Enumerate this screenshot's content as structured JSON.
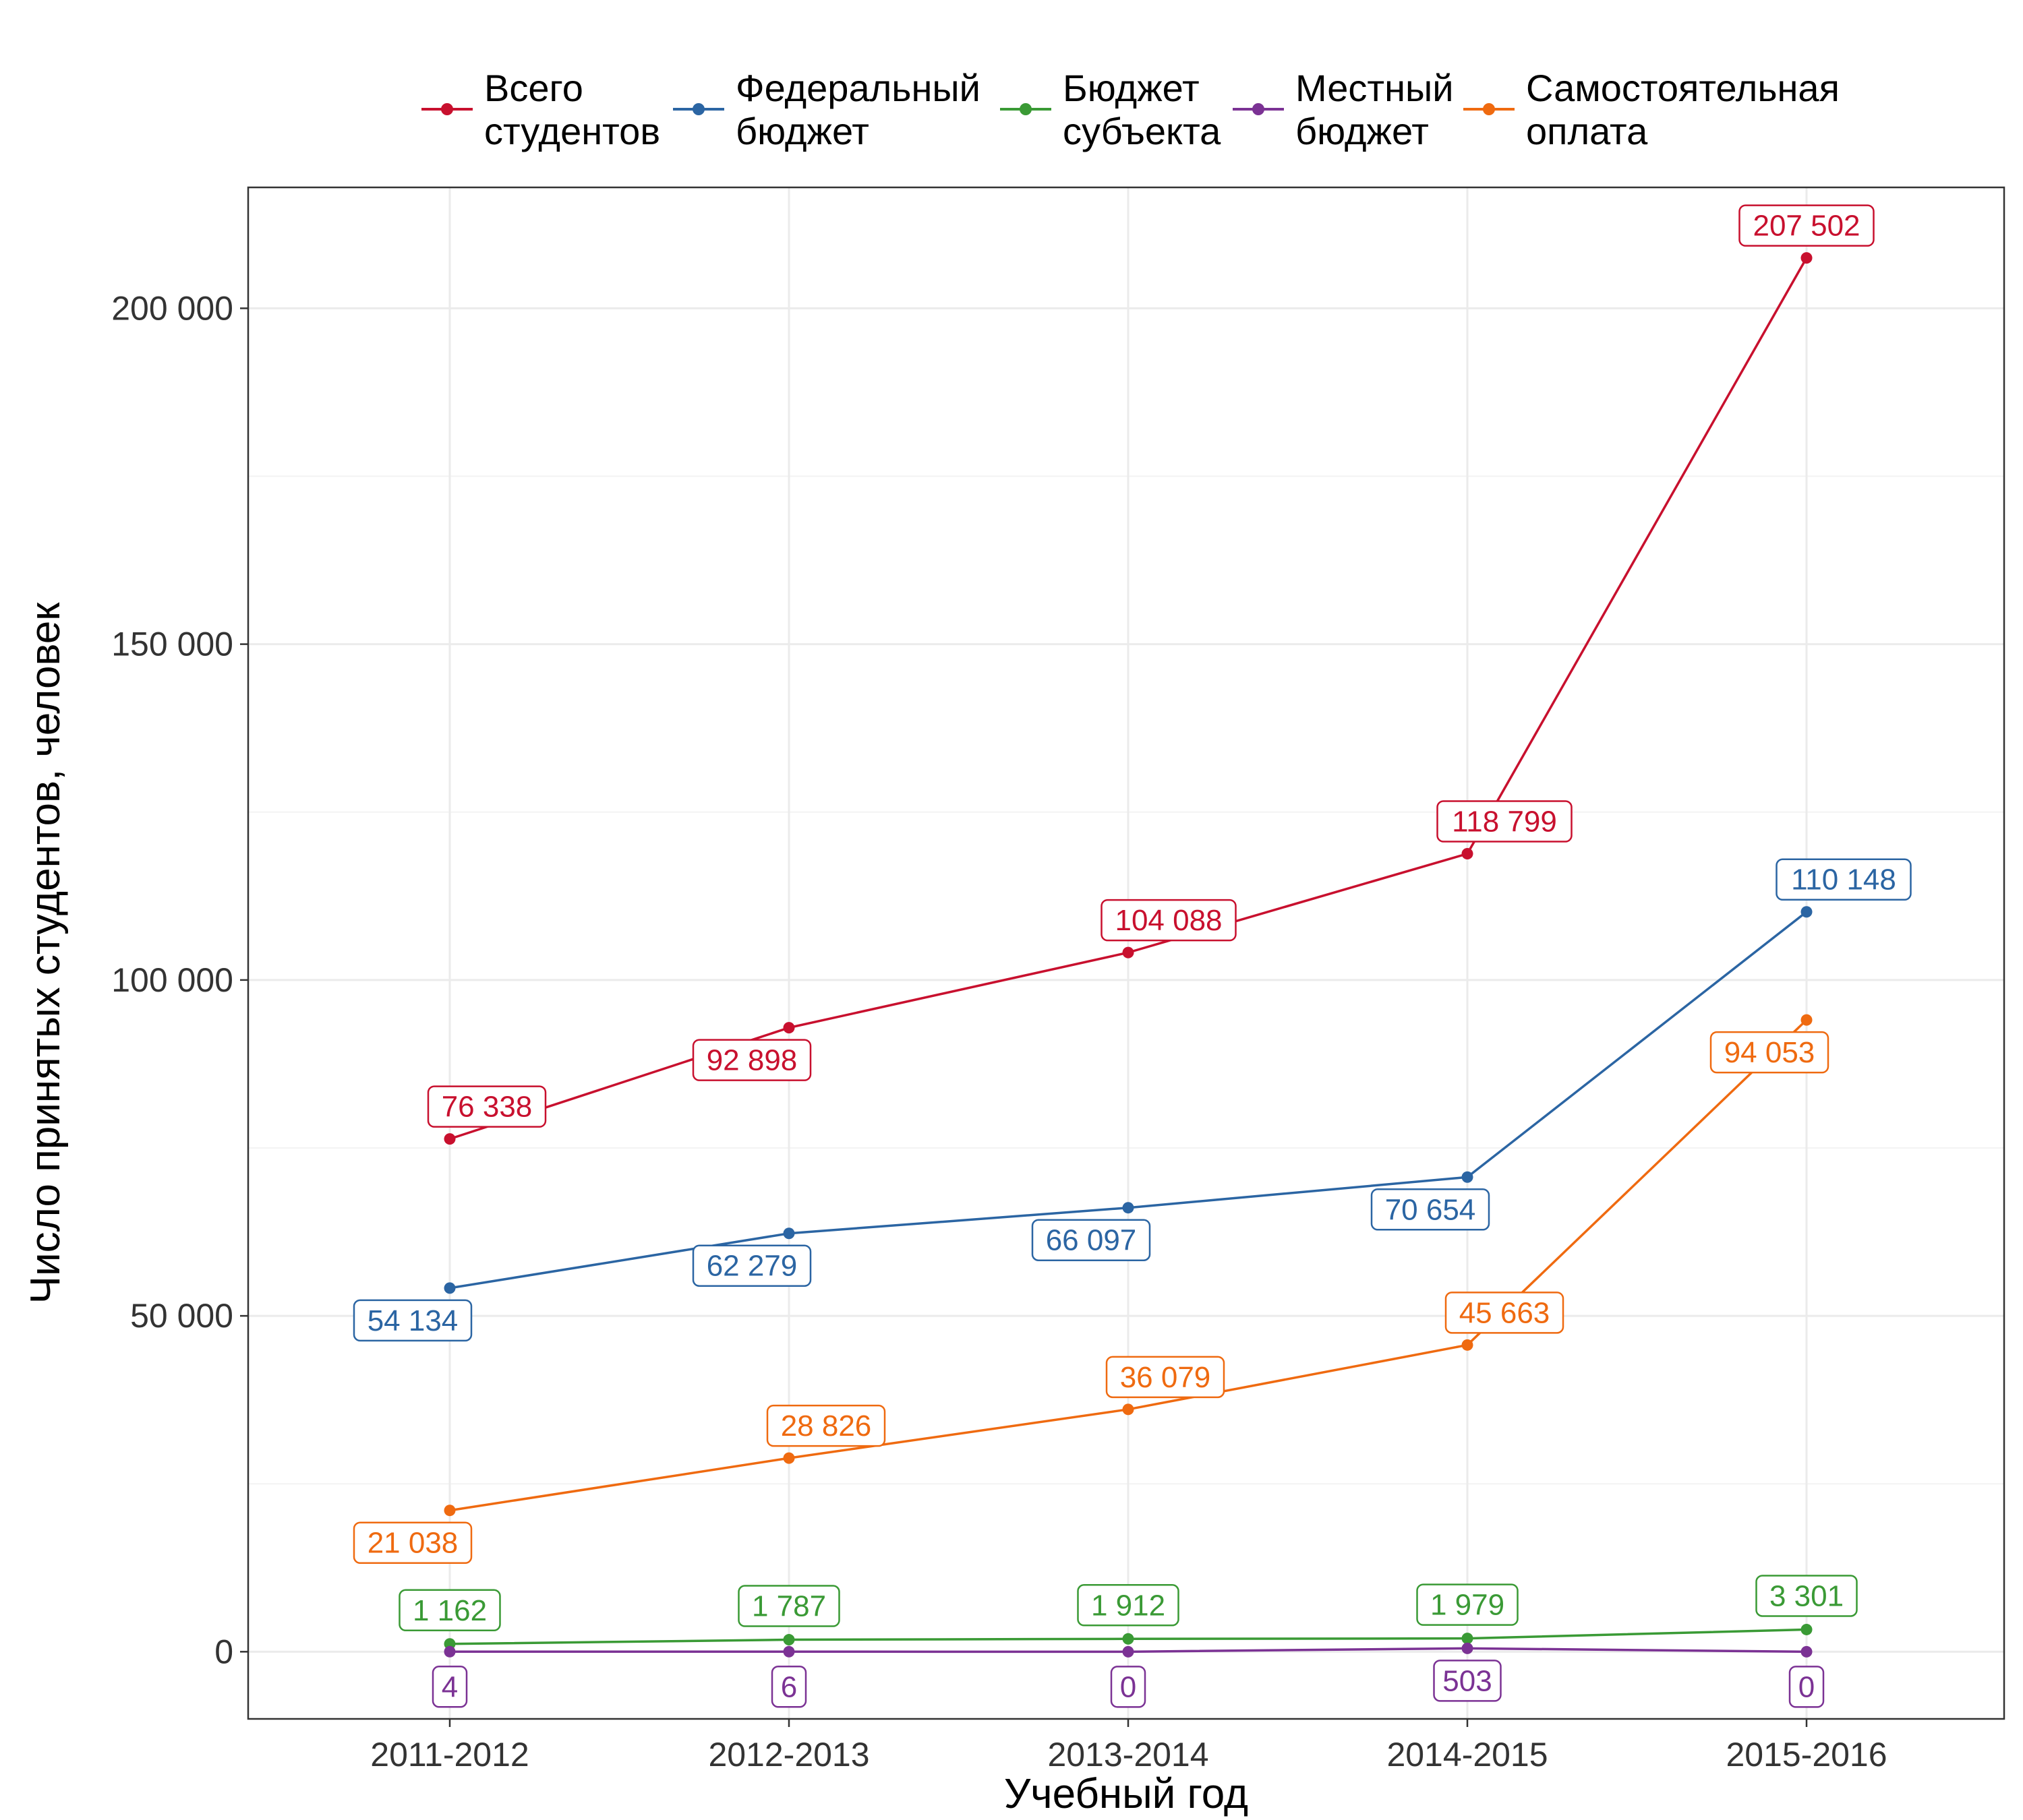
{
  "chart_data": {
    "type": "line",
    "xlabel": "Учебный год",
    "ylabel": "Число принятых студентов, человек",
    "categories": [
      "2011-2012",
      "2012-2013",
      "2013-2014",
      "2014-2015",
      "2015-2016"
    ],
    "ylim": [
      -10000,
      218000
    ],
    "yticks": [
      0,
      50000,
      100000,
      150000,
      200000
    ],
    "ytick_labels": [
      "0",
      "50 000",
      "100 000",
      "150 000",
      "200 000"
    ],
    "grid": true,
    "legend_position": "top",
    "series": [
      {
        "name": "Всего студентов",
        "legend_lines": [
          "Всего",
          "студентов"
        ],
        "color": "#c8102e",
        "values": [
          76338,
          92898,
          104088,
          118799,
          207502
        ],
        "labels": [
          "76 338",
          "92 898",
          "104 088",
          "118 799",
          "207 502"
        ]
      },
      {
        "name": "Федеральный бюджет",
        "legend_lines": [
          "Федеральный",
          "бюджет"
        ],
        "color": "#2b65a3",
        "values": [
          54134,
          62279,
          66097,
          70654,
          110148
        ],
        "labels": [
          "54 134",
          "62 279",
          "66 097",
          "70 654",
          "110 148"
        ]
      },
      {
        "name": "Бюджет субъекта",
        "legend_lines": [
          "Бюджет",
          "субъекта"
        ],
        "color": "#3a9a35",
        "values": [
          1162,
          1787,
          1912,
          1979,
          3301
        ],
        "labels": [
          "1 162",
          "1 787",
          "1 912",
          "1 979",
          "3 301"
        ]
      },
      {
        "name": "Местный бюджет",
        "legend_lines": [
          "Местный",
          "бюджет"
        ],
        "color": "#7b3294",
        "values": [
          4,
          6,
          0,
          503,
          0
        ],
        "labels": [
          "4",
          "6",
          "0",
          "503",
          "0"
        ]
      },
      {
        "name": "Самостоятельная оплата",
        "legend_lines": [
          "Самостоятельная",
          "оплата"
        ],
        "color": "#ef6a10",
        "values": [
          21038,
          28826,
          36079,
          45663,
          94053
        ],
        "labels": [
          "21 038",
          "28 826",
          "36 079",
          "45 663",
          "94 053"
        ]
      }
    ]
  }
}
